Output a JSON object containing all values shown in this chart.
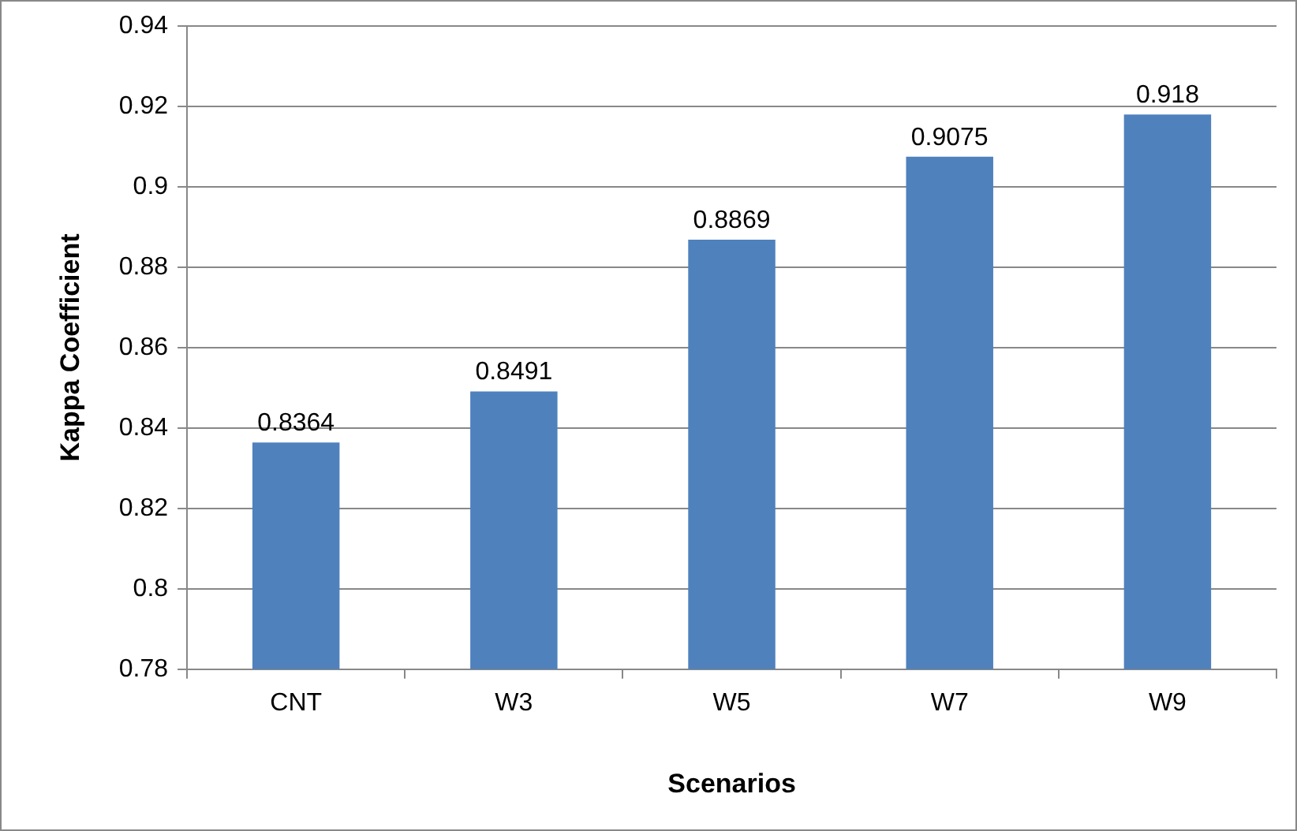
{
  "chart_data": {
    "type": "bar",
    "xlabel": "Scenarios",
    "ylabel": "Kappa Coefficient",
    "categories": [
      "CNT",
      "W3",
      "W5",
      "W7",
      "W9"
    ],
    "values": [
      0.8364,
      0.8491,
      0.8869,
      0.9075,
      0.918
    ],
    "color": "#4f81bd",
    "ylim": [
      0.78,
      0.94
    ],
    "yticks": [
      0.78,
      0.8,
      0.82,
      0.84,
      0.86,
      0.88,
      0.9,
      0.92,
      0.94
    ],
    "grid": "y",
    "legend": false,
    "data_labels": true
  }
}
